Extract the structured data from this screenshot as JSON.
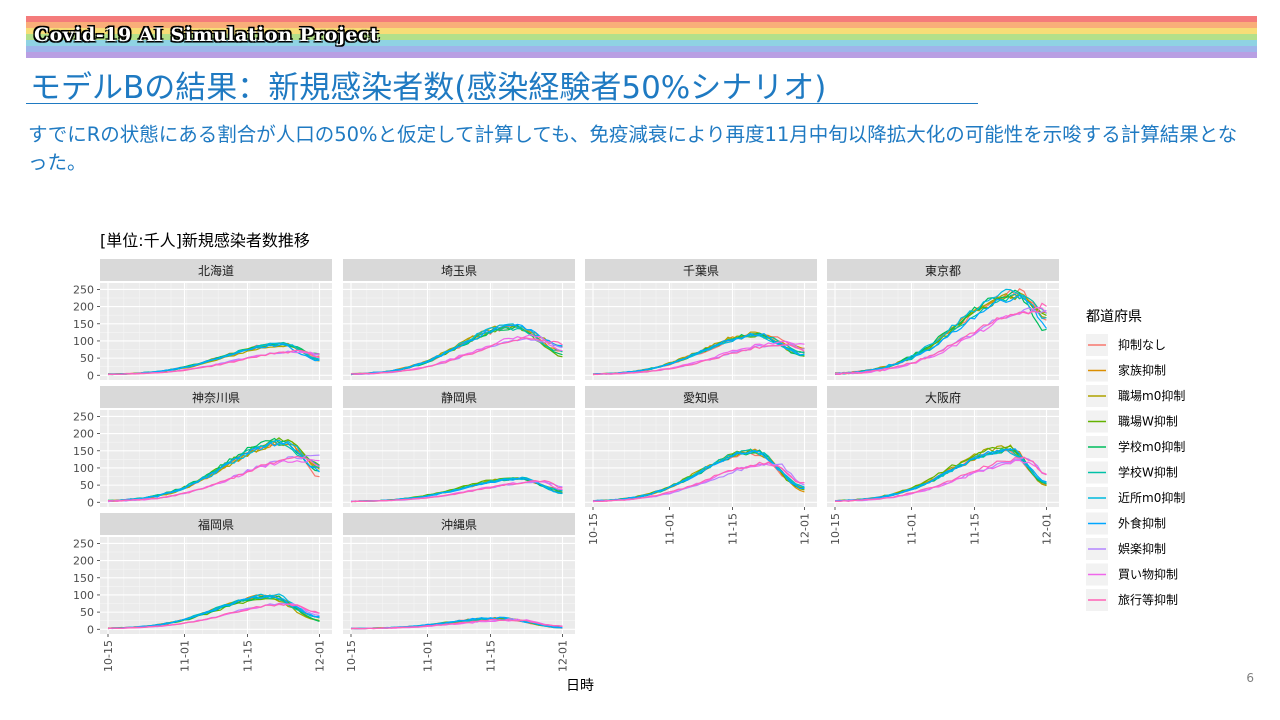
{
  "banner": {
    "project_title": "Covid-19 AI Simulation Project",
    "colors": [
      "#f47b7b",
      "#f9ae79",
      "#f7dd77",
      "#b3e08a",
      "#8fd3e3",
      "#9fb5ea",
      "#b99fe3"
    ]
  },
  "slide": {
    "title": "モデルBの結果：新規感染者数(感染経験者50%シナリオ)",
    "summary": "すでにRの状態にある割合が人口の50%と仮定して計算しても、免疫減衰により再度11月中旬以降拡大化の可能性を示唆する計算結果となった。",
    "page_number": "6"
  },
  "chart_data": {
    "type": "line",
    "title": "[単位:千人]新規感染者数推移",
    "xlabel": "日時",
    "ylabel": "",
    "x_ticks": [
      "10-15",
      "11-01",
      "11-15",
      "12-01"
    ],
    "x_range": [
      "10-15",
      "12-02"
    ],
    "y_ticks": [
      0,
      50,
      100,
      150,
      200,
      250
    ],
    "ylim": [
      -5,
      260
    ],
    "grid": true,
    "legend": {
      "title": "都道府県",
      "position": "right",
      "entries": [
        {
          "name": "抑制なし",
          "color": "#f8766d"
        },
        {
          "name": "家族抑制",
          "color": "#db8e00"
        },
        {
          "name": "職場m0抑制",
          "color": "#aea200"
        },
        {
          "name": "職場W抑制",
          "color": "#64b200"
        },
        {
          "name": "学校m0抑制",
          "color": "#00bd5c"
        },
        {
          "name": "学校W抑制",
          "color": "#00c1a7"
        },
        {
          "name": "近所m0抑制",
          "color": "#00badE"
        },
        {
          "name": "外食抑制",
          "color": "#00a6ff"
        },
        {
          "name": "娯楽抑制",
          "color": "#b385ff"
        },
        {
          "name": "買い物抑制",
          "color": "#ef67eb"
        },
        {
          "name": "旅行等抑制",
          "color": "#ff63b6"
        }
      ]
    },
    "panels": [
      {
        "name": "北海道",
        "high_peak": 92,
        "high_peak_day": 39,
        "low_peak": 72,
        "low_peak_day": 43,
        "end_value": 50
      },
      {
        "name": "埼玉県",
        "high_peak": 145,
        "high_peak_day": 36,
        "low_peak": 112,
        "low_peak_day": 41,
        "end_value": 70
      },
      {
        "name": "千葉県",
        "high_peak": 120,
        "high_peak_day": 37,
        "low_peak": 95,
        "low_peak_day": 42,
        "end_value": 65
      },
      {
        "name": "東京都",
        "high_peak": 245,
        "high_peak_day": 41,
        "low_peak": 195,
        "low_peak_day": 45,
        "end_value": 150
      },
      {
        "name": "神奈川県",
        "high_peak": 180,
        "high_peak_day": 39,
        "low_peak": 130,
        "low_peak_day": 43,
        "end_value": 90
      },
      {
        "name": "静岡県",
        "high_peak": 72,
        "high_peak_day": 38,
        "low_peak": 60,
        "low_peak_day": 43,
        "end_value": 30
      },
      {
        "name": "愛知県",
        "high_peak": 150,
        "high_peak_day": 36,
        "low_peak": 118,
        "low_peak_day": 40,
        "end_value": 40
      },
      {
        "name": "大阪府",
        "high_peak": 160,
        "high_peak_day": 39,
        "low_peak": 125,
        "low_peak_day": 43,
        "end_value": 60
      },
      {
        "name": "福岡県",
        "high_peak": 98,
        "high_peak_day": 36,
        "low_peak": 78,
        "low_peak_day": 40,
        "end_value": 30
      },
      {
        "name": "沖縄県",
        "high_peak": 32,
        "high_peak_day": 33,
        "low_peak": 28,
        "low_peak_day": 36,
        "end_value": 5
      }
    ]
  }
}
